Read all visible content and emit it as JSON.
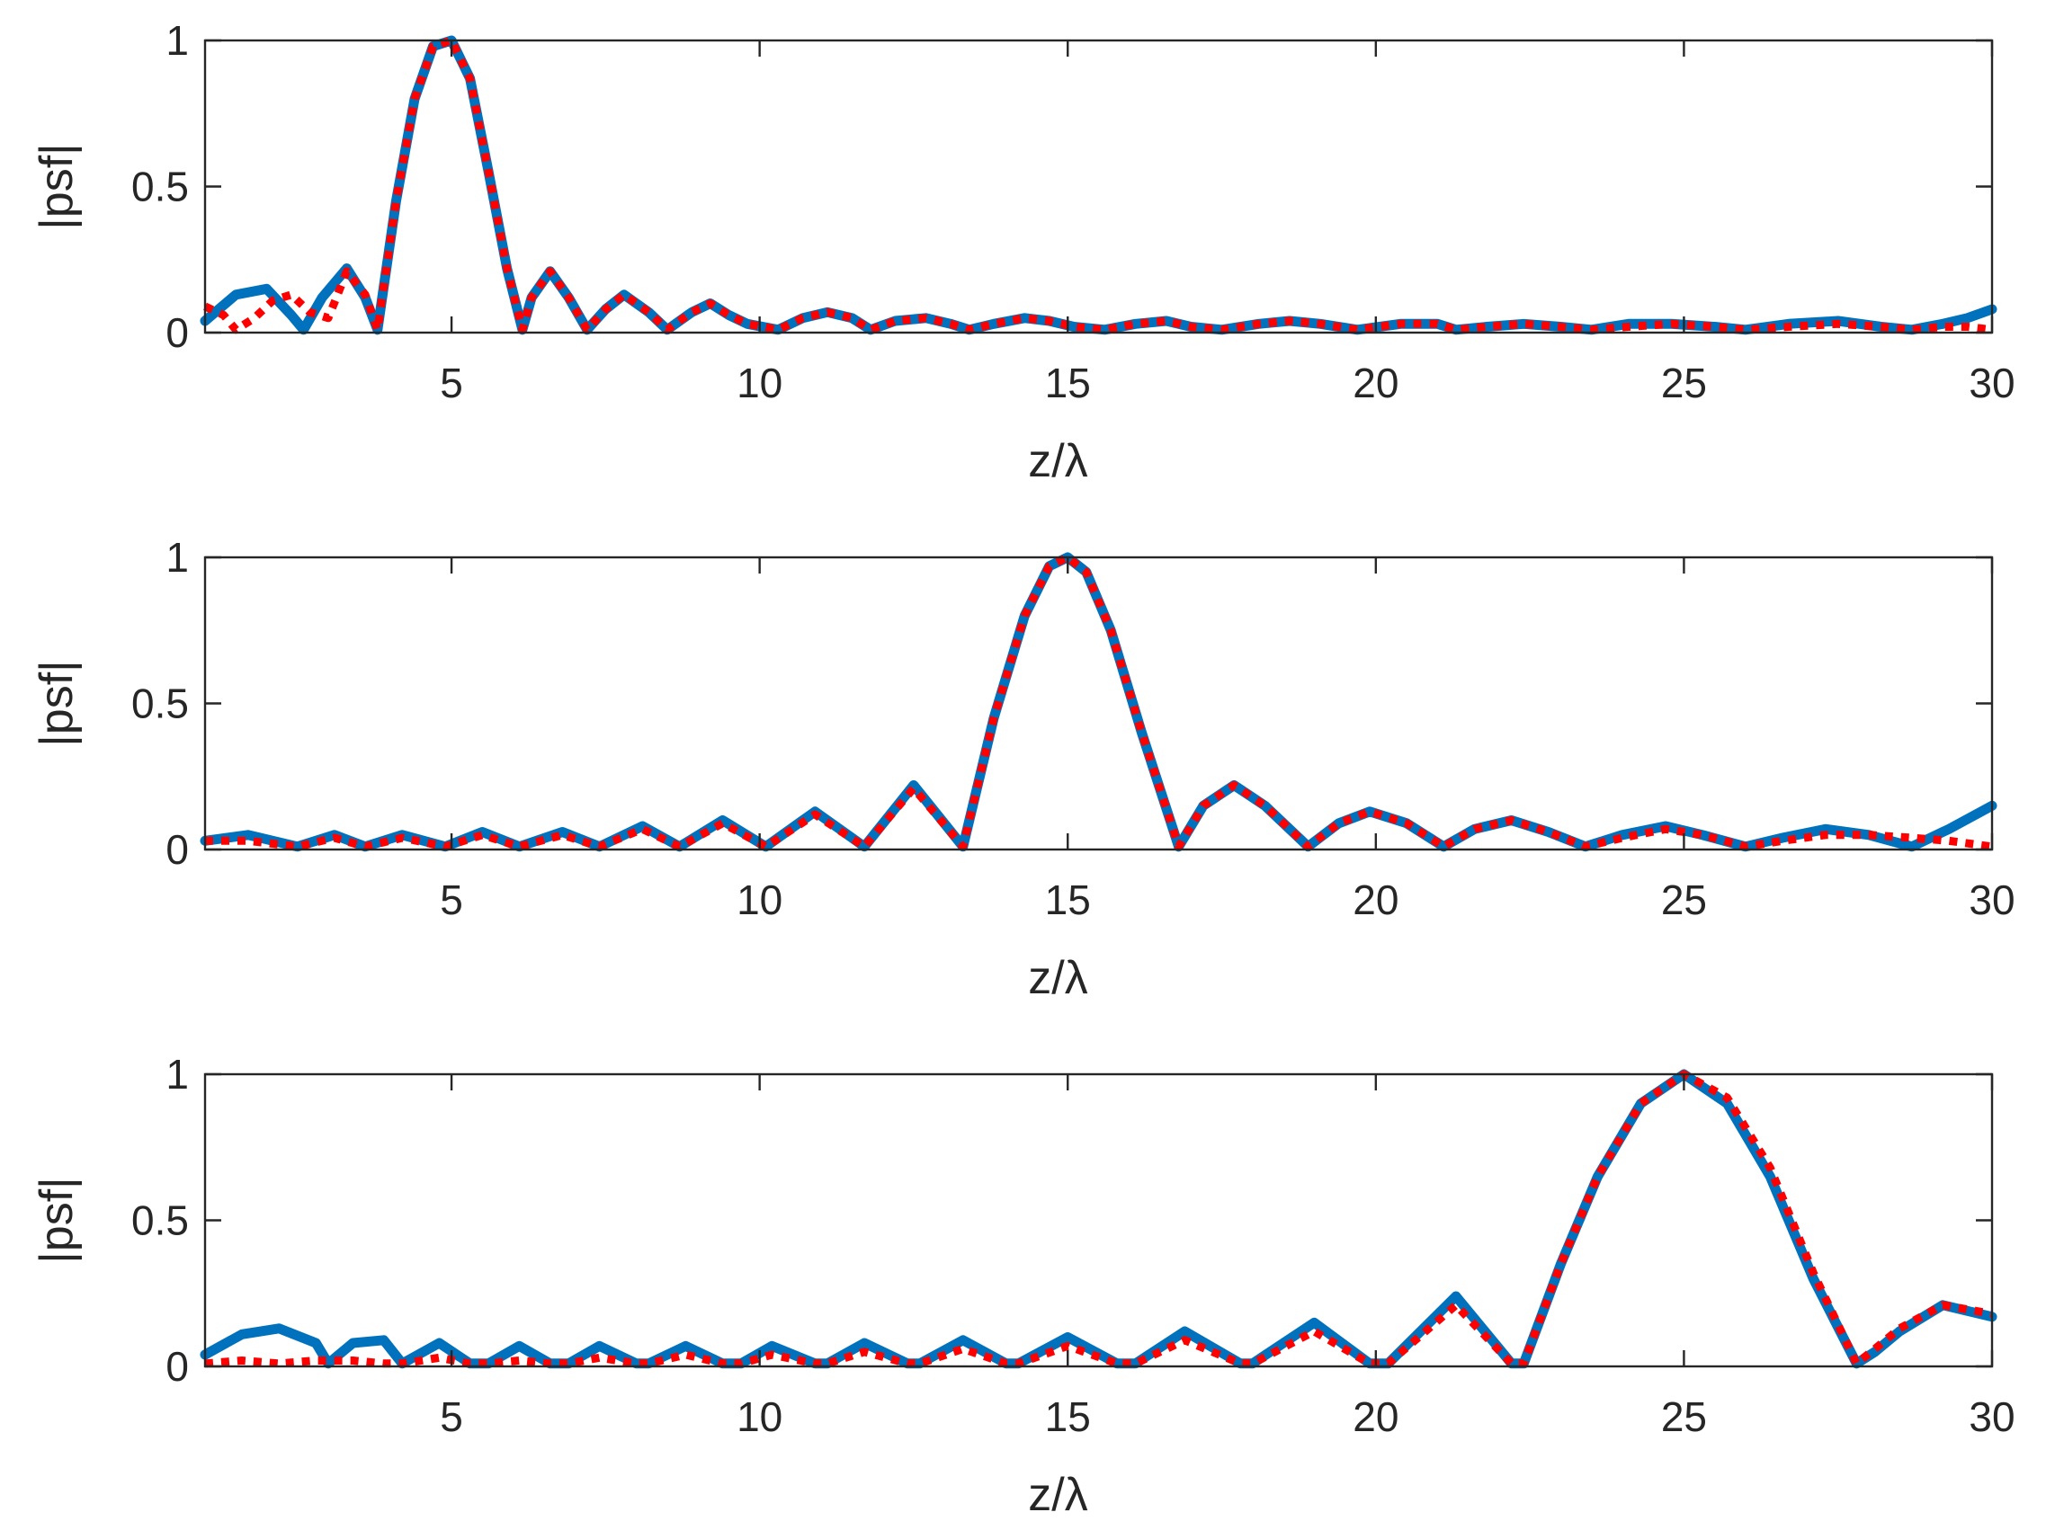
{
  "figure": {
    "background": "#ffffff",
    "axis_color": "#262626"
  },
  "chart_data": [
    {
      "type": "line",
      "xlabel": "z/λ",
      "ylabel": "|psf|",
      "xlim": [
        1,
        30
      ],
      "ylim": [
        0,
        1
      ],
      "xticks": [
        5,
        10,
        15,
        20,
        25,
        30
      ],
      "yticks": [
        0,
        0.5,
        1
      ],
      "grid": false,
      "series": [
        {
          "color": "#0072BD",
          "style": "solid",
          "x": [
            1,
            1.5,
            2,
            2.4,
            2.6,
            2.9,
            3.3,
            3.6,
            3.8,
            4.1,
            4.4,
            4.7,
            5,
            5.3,
            5.6,
            5.9,
            6.15,
            6.3,
            6.6,
            6.9,
            7.2,
            7.5,
            7.8,
            8.2,
            8.5,
            8.9,
            9.2,
            9.5,
            9.8,
            10.3,
            10.7,
            11.1,
            11.5,
            11.8,
            12.2,
            12.7,
            13.1,
            13.4,
            13.8,
            14.3,
            14.7,
            15.1,
            15.6,
            16.1,
            16.6,
            17.0,
            17.5,
            18.1,
            18.6,
            19.1,
            19.7,
            20.4,
            21.0,
            21.3,
            21.8,
            22.4,
            23.0,
            23.5,
            24.1,
            24.8,
            25.5,
            26.0,
            26.7,
            27.5,
            28.2,
            28.7,
            29.2,
            29.6,
            30
          ],
          "y": [
            0.04,
            0.13,
            0.15,
            0.06,
            0.01,
            0.12,
            0.22,
            0.12,
            0.01,
            0.45,
            0.8,
            0.98,
            1.0,
            0.87,
            0.55,
            0.22,
            0.01,
            0.12,
            0.21,
            0.12,
            0.01,
            0.08,
            0.13,
            0.07,
            0.01,
            0.07,
            0.1,
            0.06,
            0.03,
            0.01,
            0.05,
            0.07,
            0.05,
            0.01,
            0.04,
            0.05,
            0.03,
            0.01,
            0.03,
            0.05,
            0.04,
            0.02,
            0.01,
            0.03,
            0.04,
            0.02,
            0.01,
            0.03,
            0.04,
            0.03,
            0.01,
            0.03,
            0.03,
            0.01,
            0.02,
            0.03,
            0.02,
            0.01,
            0.03,
            0.03,
            0.02,
            0.01,
            0.03,
            0.04,
            0.02,
            0.01,
            0.03,
            0.05,
            0.08
          ]
        },
        {
          "color": "#ff0000",
          "style": "dotted",
          "x": [
            1,
            1.3,
            1.5,
            1.8,
            2.1,
            2.4,
            2.7,
            3.0,
            3.3,
            3.6,
            3.8,
            4.1,
            4.4,
            4.7,
            5,
            5.3,
            5.6,
            5.9,
            6.15,
            6.3,
            6.6,
            6.9,
            7.2,
            7.5,
            7.8,
            8.2,
            8.5,
            8.9,
            9.2,
            9.5,
            9.8,
            10.3,
            10.7,
            11.1,
            11.5,
            11.8,
            12.2,
            12.7,
            13.1,
            13.4,
            13.8,
            14.3,
            14.7,
            15.1,
            15.6,
            16.1,
            16.6,
            17.0,
            17.5,
            18.1,
            18.6,
            19.1,
            19.7,
            20.4,
            21.0,
            21.3,
            21.8,
            22.4,
            23.0,
            23.5,
            24.1,
            24.8,
            25.5,
            26.0,
            26.7,
            27.5,
            28.2,
            28.7,
            29.2,
            29.6,
            30
          ],
          "y": [
            0.09,
            0.06,
            0.01,
            0.05,
            0.11,
            0.13,
            0.07,
            0.05,
            0.21,
            0.13,
            0.01,
            0.45,
            0.8,
            0.98,
            1.0,
            0.87,
            0.55,
            0.22,
            0.01,
            0.12,
            0.21,
            0.12,
            0.01,
            0.08,
            0.13,
            0.07,
            0.01,
            0.07,
            0.1,
            0.06,
            0.03,
            0.01,
            0.05,
            0.07,
            0.05,
            0.01,
            0.04,
            0.05,
            0.03,
            0.01,
            0.03,
            0.05,
            0.04,
            0.02,
            0.01,
            0.03,
            0.04,
            0.02,
            0.01,
            0.03,
            0.04,
            0.03,
            0.01,
            0.03,
            0.03,
            0.01,
            0.02,
            0.03,
            0.02,
            0.01,
            0.02,
            0.03,
            0.02,
            0.01,
            0.02,
            0.03,
            0.02,
            0.01,
            0.02,
            0.02,
            0.01
          ]
        }
      ]
    },
    {
      "type": "line",
      "xlabel": "z/λ",
      "ylabel": "|psf|",
      "xlim": [
        1,
        30
      ],
      "ylim": [
        0,
        1
      ],
      "xticks": [
        5,
        10,
        15,
        20,
        25,
        30
      ],
      "yticks": [
        0,
        0.5,
        1
      ],
      "grid": false,
      "series": [
        {
          "color": "#0072BD",
          "style": "solid",
          "x": [
            1,
            1.7,
            2.5,
            3.1,
            3.6,
            4.2,
            4.9,
            5.5,
            6.1,
            6.8,
            7.4,
            8.1,
            8.7,
            9.4,
            10.1,
            10.9,
            11.7,
            12.5,
            13.3,
            13.8,
            14.3,
            14.7,
            15,
            15.3,
            15.7,
            16.2,
            16.8,
            17.2,
            17.7,
            18.2,
            18.9,
            19.4,
            19.9,
            20.5,
            21.1,
            21.6,
            22.2,
            22.8,
            23.4,
            24.0,
            24.7,
            25.3,
            26.0,
            26.6,
            27.3,
            28.0,
            28.7,
            29.3,
            30
          ],
          "y": [
            0.03,
            0.05,
            0.01,
            0.05,
            0.01,
            0.05,
            0.01,
            0.06,
            0.01,
            0.06,
            0.01,
            0.08,
            0.01,
            0.1,
            0.01,
            0.13,
            0.01,
            0.22,
            0.01,
            0.45,
            0.8,
            0.97,
            1.0,
            0.95,
            0.75,
            0.4,
            0.01,
            0.15,
            0.22,
            0.15,
            0.01,
            0.09,
            0.13,
            0.09,
            0.01,
            0.07,
            0.1,
            0.06,
            0.01,
            0.05,
            0.08,
            0.05,
            0.01,
            0.04,
            0.07,
            0.05,
            0.01,
            0.07,
            0.15
          ]
        },
        {
          "color": "#ff0000",
          "style": "dotted",
          "x": [
            1,
            1.7,
            2.5,
            3.1,
            3.6,
            4.2,
            4.9,
            5.5,
            6.1,
            6.8,
            7.4,
            8.1,
            8.7,
            9.4,
            10.1,
            10.9,
            11.7,
            12.5,
            13.3,
            13.8,
            14.3,
            14.7,
            15,
            15.3,
            15.7,
            16.2,
            16.8,
            17.2,
            17.7,
            18.2,
            18.9,
            19.4,
            19.9,
            20.5,
            21.1,
            21.6,
            22.2,
            22.8,
            23.4,
            24.0,
            24.7,
            25.3,
            26.0,
            26.6,
            27.3,
            28.0,
            28.7,
            29.3,
            30
          ],
          "y": [
            0.03,
            0.03,
            0.01,
            0.04,
            0.01,
            0.04,
            0.01,
            0.05,
            0.01,
            0.05,
            0.01,
            0.07,
            0.01,
            0.09,
            0.01,
            0.12,
            0.01,
            0.21,
            0.01,
            0.45,
            0.8,
            0.97,
            1.0,
            0.95,
            0.75,
            0.4,
            0.01,
            0.15,
            0.22,
            0.15,
            0.01,
            0.09,
            0.13,
            0.09,
            0.01,
            0.07,
            0.1,
            0.06,
            0.01,
            0.04,
            0.07,
            0.05,
            0.01,
            0.03,
            0.05,
            0.05,
            0.04,
            0.03,
            0.01
          ]
        }
      ]
    },
    {
      "type": "line",
      "xlabel": "z/λ",
      "ylabel": "|psf|",
      "xlim": [
        1,
        30
      ],
      "ylim": [
        0,
        1
      ],
      "xticks": [
        5,
        10,
        15,
        20,
        25,
        30
      ],
      "yticks": [
        0,
        0.5,
        1
      ],
      "grid": false,
      "series": [
        {
          "color": "#0072BD",
          "style": "solid",
          "x": [
            1,
            1.6,
            2.2,
            2.8,
            3.0,
            3.4,
            3.9,
            4.2,
            4.8,
            5.3,
            5.6,
            6.1,
            6.6,
            6.9,
            7.4,
            8.0,
            8.2,
            8.8,
            9.4,
            9.7,
            10.2,
            10.9,
            11.1,
            11.7,
            12.4,
            12.6,
            13.3,
            14.0,
            14.2,
            15.0,
            15.8,
            16.1,
            16.9,
            17.8,
            18.0,
            19.0,
            19.9,
            20.2,
            21.3,
            22.2,
            22.4,
            23.0,
            23.6,
            24.3,
            25,
            25.7,
            26.4,
            27.1,
            27.8,
            28.1,
            28.5,
            29.2,
            30
          ],
          "y": [
            0.04,
            0.11,
            0.13,
            0.08,
            0.01,
            0.08,
            0.09,
            0.01,
            0.08,
            0.01,
            0.01,
            0.07,
            0.01,
            0.01,
            0.07,
            0.01,
            0.01,
            0.07,
            0.01,
            0.01,
            0.07,
            0.01,
            0.01,
            0.08,
            0.01,
            0.01,
            0.09,
            0.01,
            0.01,
            0.1,
            0.01,
            0.01,
            0.12,
            0.01,
            0.01,
            0.15,
            0.01,
            0.01,
            0.24,
            0.01,
            0.01,
            0.35,
            0.65,
            0.9,
            1.0,
            0.9,
            0.65,
            0.3,
            0.01,
            0.05,
            0.12,
            0.21,
            0.17
          ]
        },
        {
          "color": "#ff0000",
          "style": "dotted",
          "x": [
            1,
            1.6,
            2.2,
            2.8,
            3.0,
            3.4,
            3.9,
            4.2,
            4.8,
            5.3,
            5.6,
            6.1,
            6.6,
            6.9,
            7.4,
            8.0,
            8.2,
            8.8,
            9.4,
            9.7,
            10.2,
            10.9,
            11.1,
            11.7,
            12.4,
            12.6,
            13.3,
            14.0,
            14.2,
            15.0,
            15.8,
            16.1,
            16.9,
            17.8,
            18.0,
            19.0,
            19.9,
            20.2,
            21.3,
            22.2,
            22.4,
            23.0,
            23.6,
            24.3,
            25,
            25.7,
            26.4,
            27.1,
            27.8,
            28.1,
            28.5,
            29.2,
            30
          ],
          "y": [
            0.01,
            0.02,
            0.01,
            0.02,
            0.02,
            0.02,
            0.01,
            0.01,
            0.03,
            0.01,
            0.01,
            0.02,
            0.01,
            0.01,
            0.03,
            0.01,
            0.01,
            0.04,
            0.01,
            0.01,
            0.04,
            0.01,
            0.01,
            0.05,
            0.01,
            0.01,
            0.06,
            0.01,
            0.01,
            0.07,
            0.01,
            0.01,
            0.09,
            0.01,
            0.01,
            0.12,
            0.01,
            0.01,
            0.21,
            0.01,
            0.01,
            0.35,
            0.65,
            0.9,
            1.0,
            0.92,
            0.68,
            0.32,
            0.01,
            0.06,
            0.13,
            0.21,
            0.18
          ]
        }
      ]
    }
  ]
}
